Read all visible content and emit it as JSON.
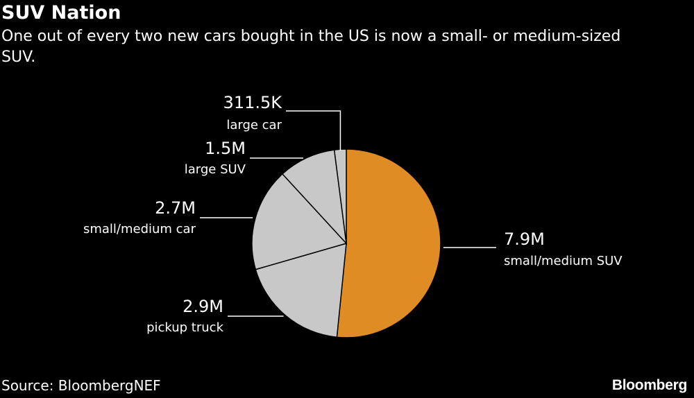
{
  "title": "SUV Nation",
  "subtitle": "One out of every two new cars bought in the US is now a small- or medium-sized SUV.",
  "source": "Source: BloombergNEF",
  "logo_text": "Bloomberg",
  "colors": {
    "background": "#000000",
    "highlight": "#e08c24",
    "other": "#c8c8c8",
    "slice_border": "#000000",
    "leader": "#ffffff"
  },
  "chart_data": {
    "type": "pie",
    "title": "SUV Nation",
    "start": "12 o'clock, clockwise",
    "slices": [
      {
        "label": "small/medium SUV",
        "value": 7.9,
        "value_label": "7.9M",
        "color": "#e08c24"
      },
      {
        "label": "pickup truck",
        "value": 2.9,
        "value_label": "2.9M",
        "color": "#c8c8c8"
      },
      {
        "label": "small/medium car",
        "value": 2.7,
        "value_label": "2.7M",
        "color": "#c8c8c8"
      },
      {
        "label": "large SUV",
        "value": 1.5,
        "value_label": "1.5M",
        "color": "#c8c8c8"
      },
      {
        "label": "large car",
        "value": 0.3115,
        "value_label": "311.5K",
        "color": "#c8c8c8"
      }
    ]
  }
}
